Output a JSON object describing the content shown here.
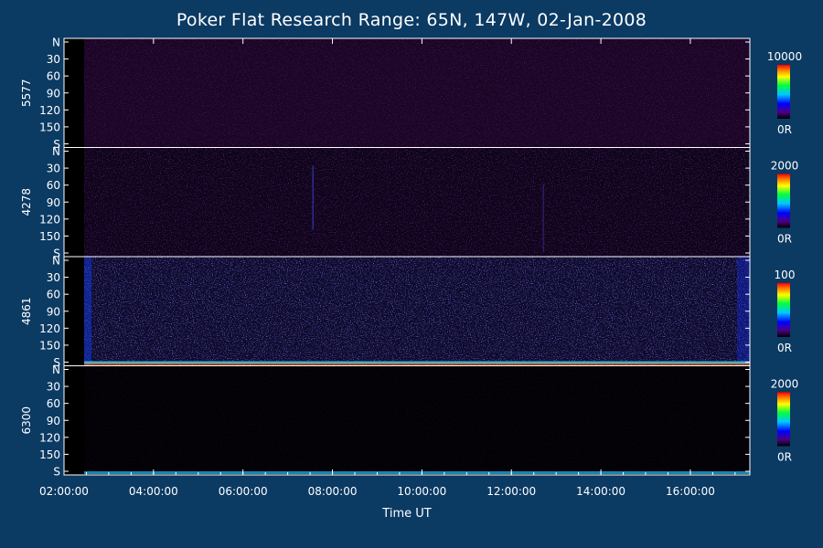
{
  "chart_data": {
    "type": "heatmap",
    "title": "Poker Flat Research Range: 65N, 147W, 02-Jan-2008",
    "xlabel": "Time UT",
    "x_range_hours": [
      2.0,
      17.33
    ],
    "x_ticks": [
      "02:00:00",
      "04:00:00",
      "06:00:00",
      "08:00:00",
      "10:00:00",
      "12:00:00",
      "14:00:00",
      "16:00:00"
    ],
    "y_ticks": [
      "N",
      "30",
      "60",
      "90",
      "120",
      "150",
      "S"
    ],
    "y_range": [
      0,
      180
    ],
    "panels": [
      {
        "name": "5577",
        "colorbar_max": "10000",
        "colorbar_min": "0R"
      },
      {
        "name": "4278",
        "colorbar_max": "2000",
        "colorbar_min": "0R"
      },
      {
        "name": "4861",
        "colorbar_max": "100",
        "colorbar_min": "0R"
      },
      {
        "name": "6300",
        "colorbar_max": "2000",
        "colorbar_min": "0R"
      }
    ]
  }
}
